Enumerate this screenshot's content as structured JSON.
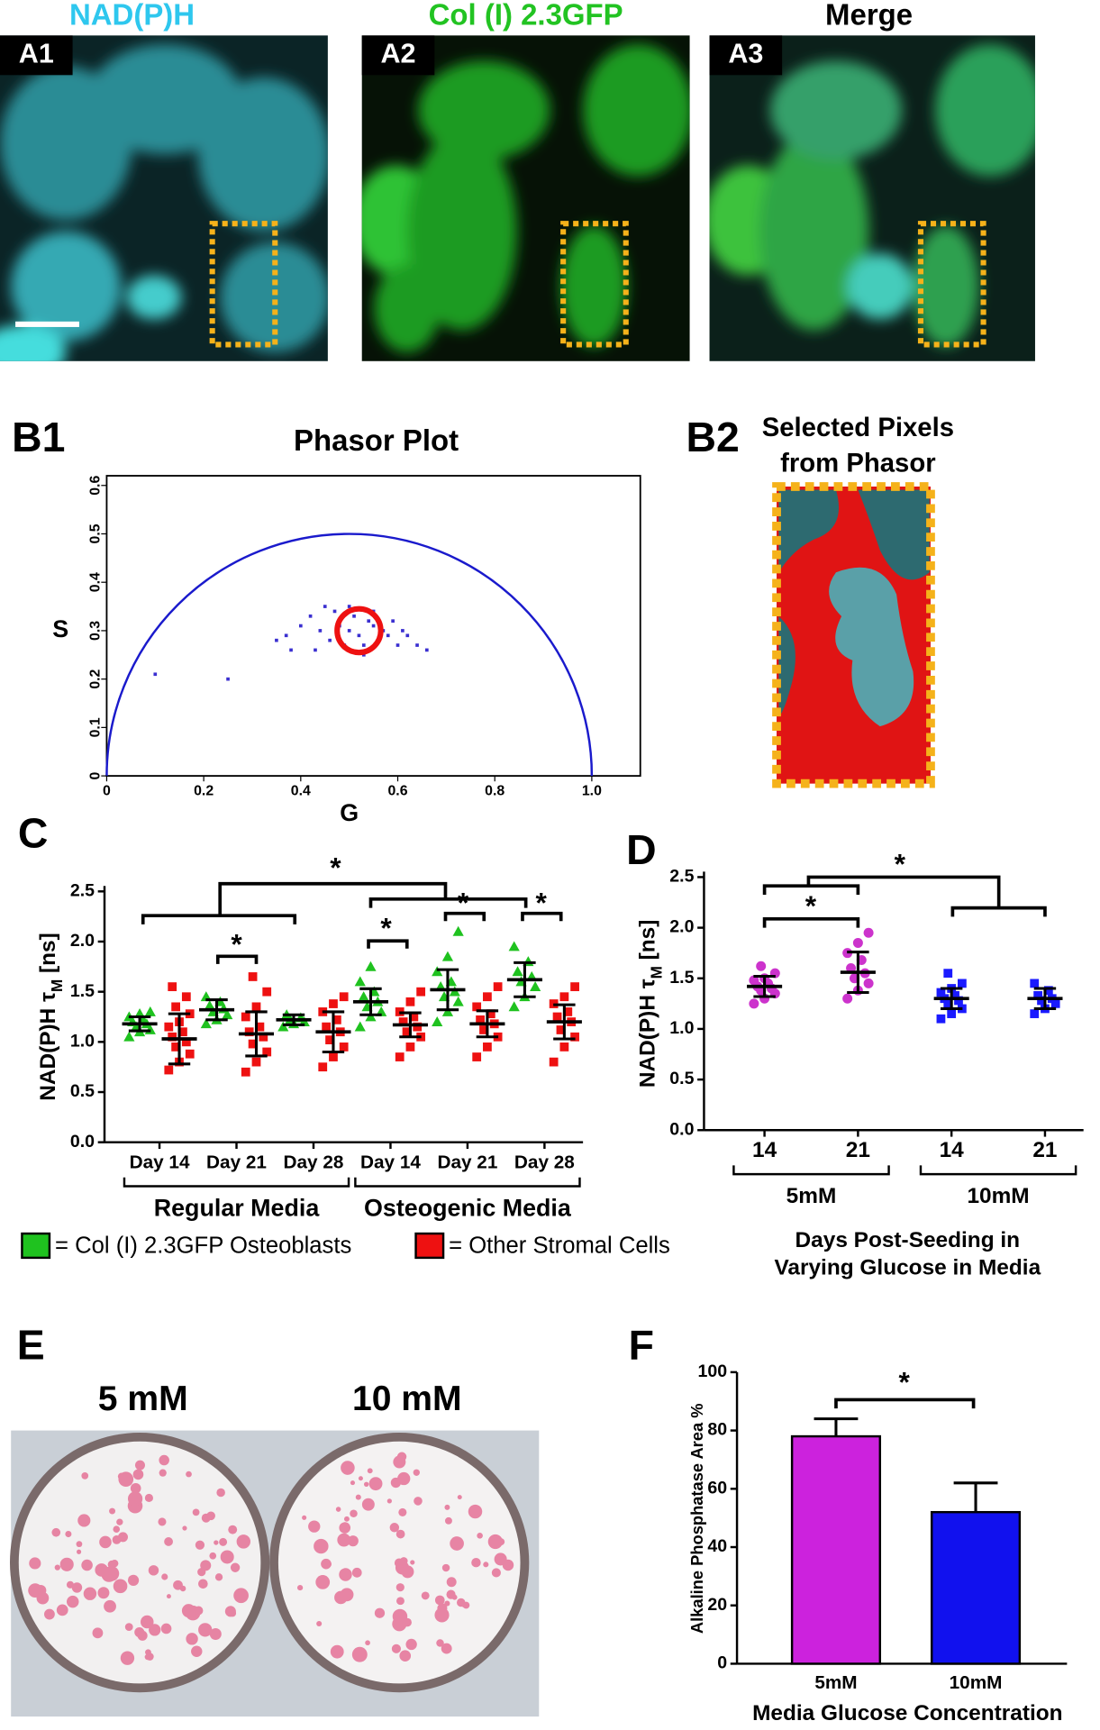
{
  "figure": {
    "images": [
      {
        "title": "NAD(P)H",
        "label": "A1"
      },
      {
        "title": "Col (I) 2.3GFP",
        "label": "A2"
      },
      {
        "title": "Merge",
        "label": "A3"
      }
    ],
    "panel_labels": [
      "B1",
      "B2",
      "C",
      "D",
      "E",
      "F"
    ],
    "selected_pixels_title": [
      "Selected Pixels",
      "from Phasor"
    ],
    "dish_labels": [
      "5 mM",
      "10 mM"
    ]
  },
  "chart_data": [
    {
      "type": "scatter",
      "title": "Phasor Plot",
      "xlabel": "G",
      "ylabel": "S",
      "xlim": [
        0,
        1.1
      ],
      "ylim": [
        0,
        0.62
      ],
      "xticks": [
        0,
        0.2,
        0.4,
        0.6,
        0.8,
        {
          "value": 1,
          "label": "1.0"
        }
      ],
      "yticks": [
        0,
        0.1,
        0.2,
        0.3,
        0.4,
        0.5,
        0.6
      ],
      "color": "#3a2fd0",
      "selection_color": "#ee1111",
      "x": [
        0.37,
        0.4,
        0.42,
        0.44,
        0.46,
        0.47,
        0.48,
        0.5,
        0.51,
        0.52,
        0.53,
        0.54,
        0.55,
        0.56,
        0.57,
        0.58,
        0.6,
        0.62,
        0.64,
        0.66,
        0.45,
        0.5,
        0.55,
        0.59,
        0.43,
        0.49,
        0.53,
        0.61,
        0.1,
        0.25,
        0.35,
        0.38
      ],
      "values": [
        0.29,
        0.31,
        0.33,
        0.3,
        0.28,
        0.34,
        0.31,
        0.3,
        0.33,
        0.29,
        0.27,
        0.32,
        0.31,
        0.28,
        0.3,
        0.29,
        0.27,
        0.29,
        0.27,
        0.26,
        0.35,
        0.35,
        0.34,
        0.32,
        0.26,
        0.27,
        0.25,
        0.3,
        0.21,
        0.2,
        0.28,
        0.26
      ],
      "selection": {
        "center": [
          0.52,
          0.3
        ],
        "radius": 0.045
      }
    },
    {
      "type": "dot",
      "ylabel": [
        "NAD(P)H τ",
        "M",
        " [ns]"
      ],
      "categories": [
        "Day 14",
        "Day 21",
        "Day 28",
        "Day 14",
        "Day 21",
        "Day 28"
      ],
      "groups": [
        "Regular Media",
        "Osteogenic Media"
      ],
      "ylim": [
        0,
        2.5
      ],
      "yticks": [
        {
          "value": 0,
          "label": "0.0"
        },
        0.5,
        {
          "value": 1,
          "label": "1.0"
        },
        1.5,
        {
          "value": 2,
          "label": "2.0"
        },
        2.5
      ],
      "series": [
        {
          "name": "= Col (I) 2.3GFP Osteoblasts",
          "color": "#1fc21f",
          "marker": "triangle",
          "values": [
            1.18,
            1.32,
            1.22,
            1.4,
            1.52,
            1.62
          ],
          "errors": [
            0.07,
            0.1,
            0.05,
            0.13,
            0.2,
            0.17
          ],
          "points": [
            [
              1.05,
              1.1,
              1.12,
              1.15,
              1.18,
              1.2,
              1.22,
              1.25,
              1.28,
              1.3
            ],
            [
              1.18,
              1.22,
              1.27,
              1.3,
              1.33,
              1.36,
              1.4,
              1.45
            ],
            [
              1.15,
              1.18,
              1.2,
              1.22,
              1.24,
              1.27
            ],
            [
              1.15,
              1.25,
              1.3,
              1.35,
              1.4,
              1.45,
              1.5,
              1.6,
              1.75
            ],
            [
              1.2,
              1.3,
              1.4,
              1.45,
              1.5,
              1.55,
              1.6,
              1.7,
              1.85,
              2.1
            ],
            [
              1.35,
              1.45,
              1.55,
              1.6,
              1.65,
              1.7,
              1.8,
              1.95
            ]
          ]
        },
        {
          "name": "= Other Stromal Cells",
          "color": "#ee1111",
          "marker": "square",
          "values": [
            1.03,
            1.08,
            1.1,
            1.17,
            1.18,
            1.2
          ],
          "errors": [
            0.25,
            0.22,
            0.2,
            0.12,
            0.13,
            0.17
          ],
          "points": [
            [
              0.72,
              0.8,
              0.88,
              0.95,
              1.0,
              1.05,
              1.1,
              1.15,
              1.2,
              1.28,
              1.35,
              1.45,
              1.55
            ],
            [
              0.7,
              0.8,
              0.9,
              0.98,
              1.05,
              1.1,
              1.15,
              1.25,
              1.35,
              1.5,
              1.65
            ],
            [
              0.75,
              0.85,
              0.95,
              1.02,
              1.1,
              1.15,
              1.22,
              1.3,
              1.38,
              1.45
            ],
            [
              0.85,
              0.95,
              1.05,
              1.1,
              1.15,
              1.2,
              1.25,
              1.3,
              1.4,
              1.5
            ],
            [
              0.85,
              0.95,
              1.05,
              1.12,
              1.18,
              1.22,
              1.28,
              1.35,
              1.45,
              1.55
            ],
            [
              0.8,
              0.95,
              1.05,
              1.12,
              1.2,
              1.25,
              1.3,
              1.38,
              1.45,
              1.55
            ]
          ]
        }
      ],
      "annotations": [
        "*",
        "*",
        "*",
        "*",
        "*"
      ]
    },
    {
      "type": "dot",
      "ylabel": [
        "NAD(P)H τ",
        "M",
        " [ns]"
      ],
      "categories": [
        "14",
        "21",
        "14",
        "21"
      ],
      "groups": [
        "5mM",
        "10mM"
      ],
      "xlabel": [
        "Days Post-Seeding in",
        "Varying Glucose in Media"
      ],
      "ylim": [
        0,
        2.5
      ],
      "yticks": [
        {
          "value": 0,
          "label": "0.0"
        },
        0.5,
        {
          "value": 1,
          "label": "1.0"
        },
        1.5,
        {
          "value": 2,
          "label": "2.0"
        },
        2.5
      ],
      "series": [
        {
          "colors": [
            "#cc33cc",
            "#cc33cc",
            "#1a1aff",
            "#1a1aff"
          ],
          "markers": [
            "circle",
            "circle",
            "square",
            "square"
          ],
          "values": [
            1.42,
            1.56,
            1.3,
            1.3
          ],
          "errors": [
            0.1,
            0.2,
            0.1,
            0.1
          ],
          "points": [
            [
              1.25,
              1.3,
              1.35,
              1.38,
              1.4,
              1.42,
              1.45,
              1.48,
              1.5,
              1.55,
              1.62
            ],
            [
              1.3,
              1.38,
              1.45,
              1.5,
              1.55,
              1.6,
              1.68,
              1.75,
              1.85,
              1.95
            ],
            [
              1.1,
              1.15,
              1.2,
              1.25,
              1.28,
              1.3,
              1.33,
              1.36,
              1.4,
              1.45,
              1.55
            ],
            [
              1.15,
              1.2,
              1.25,
              1.28,
              1.3,
              1.33,
              1.38,
              1.45
            ]
          ]
        }
      ],
      "annotations": [
        "*",
        "*"
      ]
    },
    {
      "type": "bar",
      "ylabel": "Alkaline Phosphatase Area %",
      "xlabel": "Media Glucose Concentration",
      "categories": [
        "5mM",
        "10mM"
      ],
      "values": [
        78,
        52
      ],
      "errors": [
        6,
        10
      ],
      "colors": [
        "#cc22dd",
        "#1111ee"
      ],
      "ylim": [
        0,
        100
      ],
      "yticks": [
        0,
        20,
        40,
        60,
        80,
        100
      ],
      "annotations": [
        "*"
      ]
    }
  ]
}
